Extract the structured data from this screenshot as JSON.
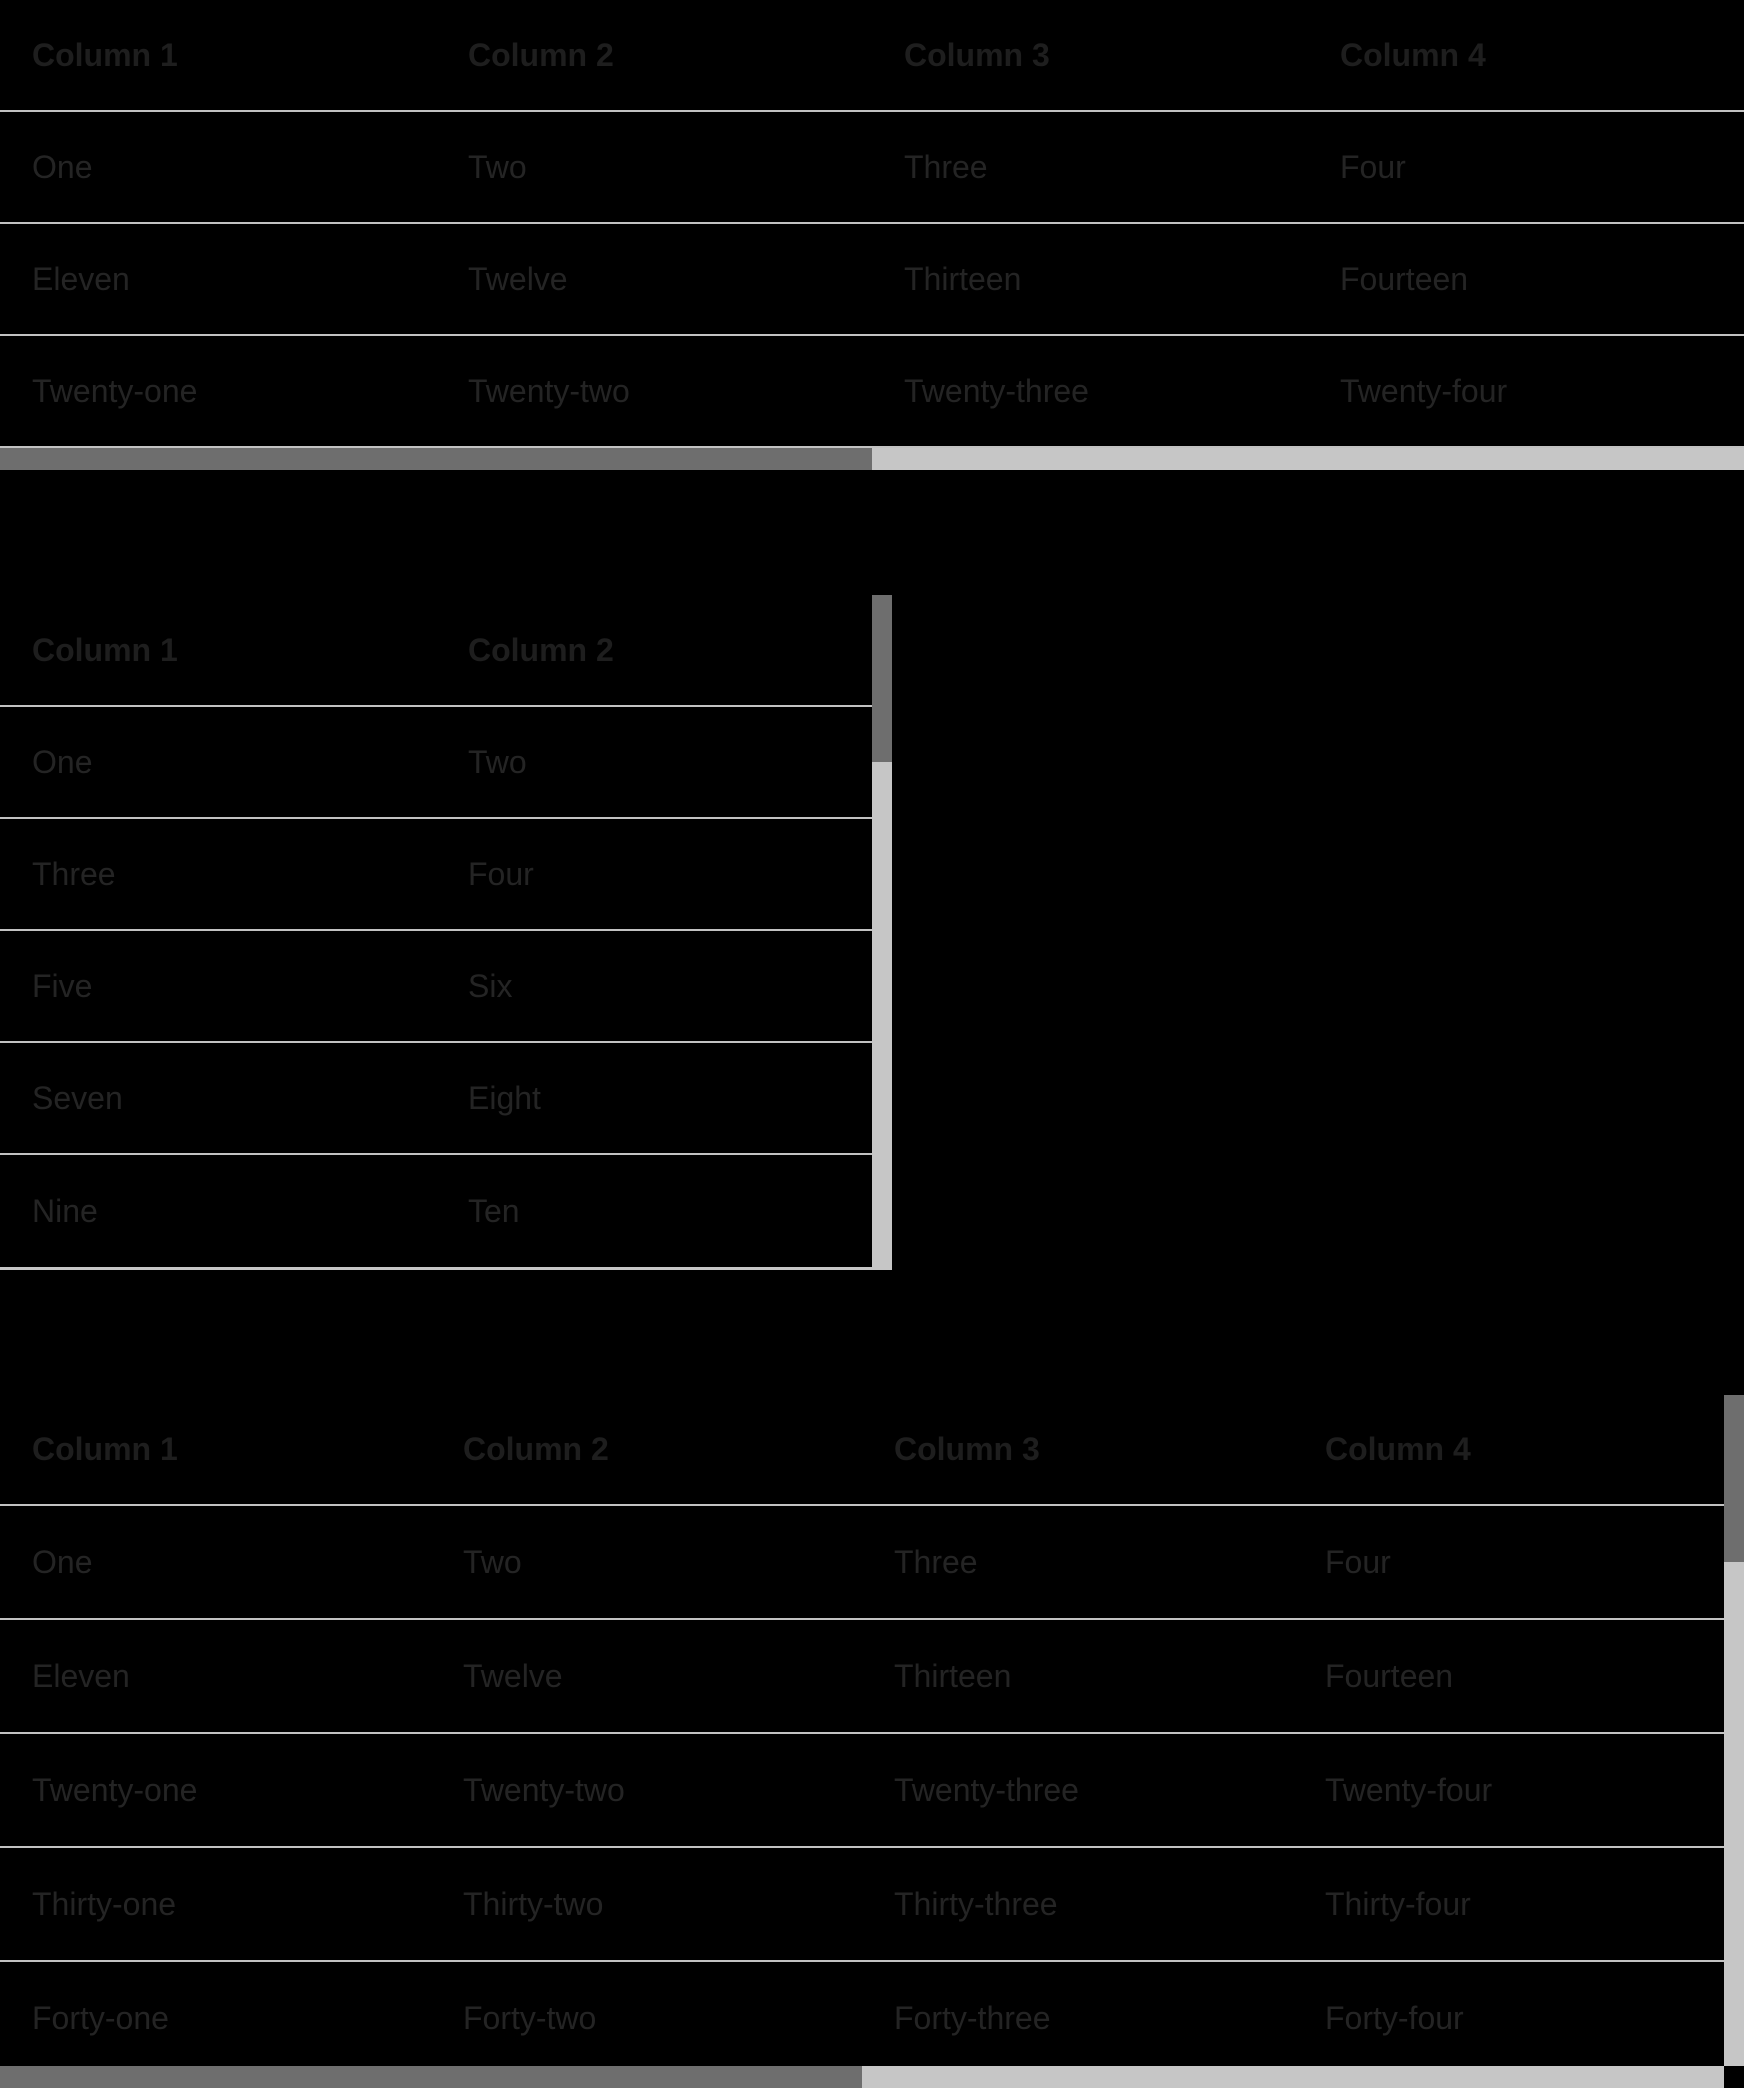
{
  "colors": {
    "background": "#000000",
    "header_text": "#1e1e1e",
    "cell_text": "#242424",
    "divider": "#c2c2c2",
    "scrollbar_track": "#c6c6c6",
    "scrollbar_thumb": "#6e6e6e"
  },
  "tables": [
    {
      "id": "table-1",
      "columns": [
        "Column 1",
        "Column 2",
        "Column 3",
        "Column 4"
      ],
      "rows": [
        [
          "One",
          "Two",
          "Three",
          "Four"
        ],
        [
          "Eleven",
          "Twelve",
          "Thirteen",
          "Fourteen"
        ],
        [
          "Twenty-one",
          "Twenty-two",
          "Twenty-three",
          "Twenty-four"
        ]
      ],
      "scroll_state": {
        "horizontal": {
          "thumb_offset_pct": 0,
          "thumb_size_pct": 50
        }
      }
    },
    {
      "id": "table-2",
      "columns": [
        "Column 1",
        "Column 2"
      ],
      "rows": [
        [
          "One",
          "Two"
        ],
        [
          "Three",
          "Four"
        ],
        [
          "Five",
          "Six"
        ],
        [
          "Seven",
          "Eight"
        ],
        [
          "Nine",
          "Ten"
        ]
      ],
      "scroll_state": {
        "vertical": {
          "thumb_offset_pct": 0,
          "thumb_size_pct": 24.9
        }
      }
    },
    {
      "id": "table-3",
      "columns": [
        "Column 1",
        "Column 2",
        "Column 3",
        "Column 4"
      ],
      "rows": [
        [
          "One",
          "Two",
          "Three",
          "Four"
        ],
        [
          "Eleven",
          "Twelve",
          "Thirteen",
          "Fourteen"
        ],
        [
          "Twenty-one",
          "Twenty-two",
          "Twenty-three",
          "Twenty-four"
        ],
        [
          "Thirty-one",
          "Thirty-two",
          "Thirty-three",
          "Thirty-four"
        ],
        [
          "Forty-one",
          "Forty-two",
          "Forty-three",
          "Forty-four"
        ]
      ],
      "scroll_state": {
        "vertical": {
          "thumb_offset_pct": 0,
          "thumb_size_pct": 24.9
        },
        "horizontal": {
          "thumb_offset_pct": 0,
          "thumb_size_pct": 50
        }
      }
    }
  ]
}
